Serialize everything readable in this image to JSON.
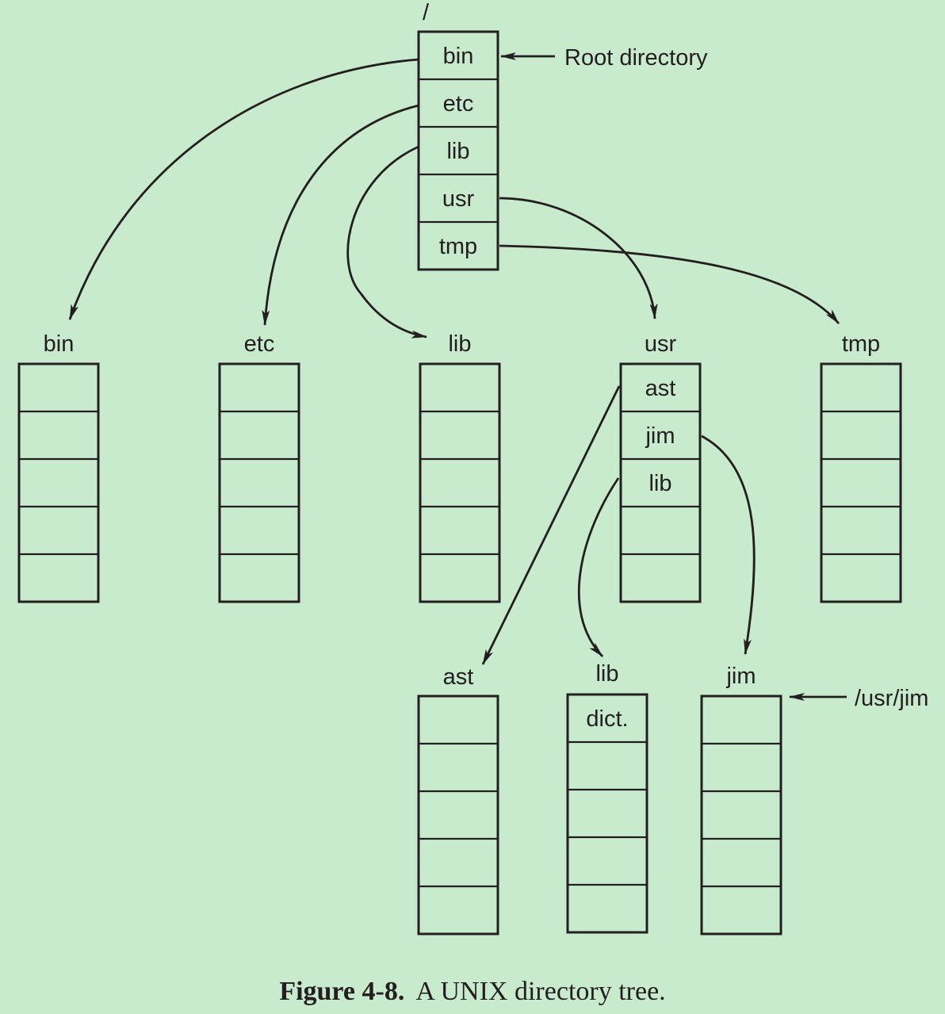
{
  "root": {
    "label": "/",
    "entries": [
      "bin",
      "etc",
      "lib",
      "usr",
      "tmp"
    ],
    "annotation": "Root directory"
  },
  "level1": [
    {
      "label": "bin",
      "entries": [
        "",
        "",
        "",
        "",
        ""
      ]
    },
    {
      "label": "etc",
      "entries": [
        "",
        "",
        "",
        "",
        ""
      ]
    },
    {
      "label": "lib",
      "entries": [
        "",
        "",
        "",
        "",
        ""
      ]
    },
    {
      "label": "usr",
      "entries": [
        "ast",
        "jim",
        "lib",
        "",
        ""
      ]
    },
    {
      "label": "tmp",
      "entries": [
        "",
        "",
        "",
        "",
        ""
      ]
    }
  ],
  "level2": [
    {
      "label": "ast",
      "entries": [
        "",
        "",
        "",
        "",
        ""
      ]
    },
    {
      "label": "lib",
      "entries": [
        "dict.",
        "",
        "",
        "",
        ""
      ]
    },
    {
      "label": "jim",
      "entries": [
        "",
        "",
        "",
        "",
        ""
      ],
      "annotation": "/usr/jim"
    }
  ],
  "caption": {
    "label": "Figure 4-8.",
    "text": "A UNIX directory tree."
  }
}
